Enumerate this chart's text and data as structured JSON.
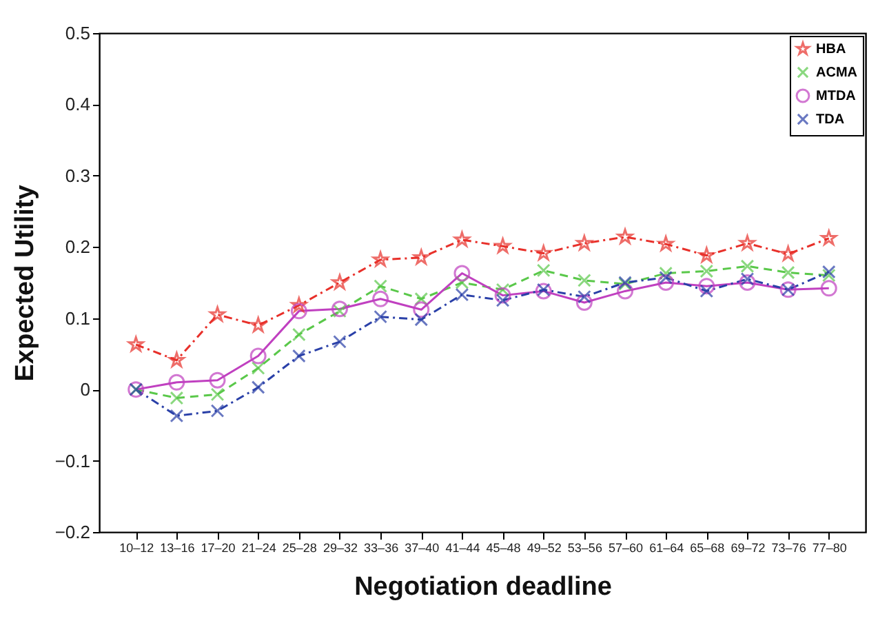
{
  "chart_data": {
    "type": "line",
    "xlabel": "Negotiation deadline",
    "ylabel": "Expected Utility",
    "categories": [
      "10–12",
      "13–16",
      "17–20",
      "21–24",
      "25–28",
      "29–32",
      "33–36",
      "37–40",
      "41–44",
      "45–48",
      "49–52",
      "53–56",
      "57–60",
      "61–64",
      "65–68",
      "69–72",
      "73–76",
      "77–80"
    ],
    "series": [
      {
        "name": "HBA",
        "color": "#e8302a",
        "marker": "star",
        "line_style": "dashdot",
        "values": [
          0.063,
          0.041,
          0.105,
          0.09,
          0.118,
          0.15,
          0.182,
          0.185,
          0.21,
          0.201,
          0.191,
          0.205,
          0.214,
          0.204,
          0.188,
          0.205,
          0.19,
          0.212
        ]
      },
      {
        "name": "ACMA",
        "color": "#5ac84a",
        "marker": "cross",
        "line_style": "dashed",
        "values": [
          0,
          -0.012,
          -0.007,
          0.03,
          0.077,
          0.11,
          0.145,
          0.127,
          0.15,
          0.14,
          0.167,
          0.153,
          0.148,
          0.163,
          0.166,
          0.173,
          0.164,
          0.16
        ]
      },
      {
        "name": "MTDA",
        "color": "#c040c0",
        "marker": "circle",
        "line_style": "solid",
        "values": [
          0,
          0.01,
          0.013,
          0.047,
          0.11,
          0.113,
          0.127,
          0.112,
          0.163,
          0.132,
          0.138,
          0.122,
          0.138,
          0.15,
          0.145,
          0.15,
          0.14,
          0.142
        ]
      },
      {
        "name": "TDA",
        "color": "#2a40a8",
        "marker": "cross",
        "line_style": "dashdot",
        "values": [
          0,
          -0.037,
          -0.03,
          0.003,
          0.047,
          0.067,
          0.102,
          0.098,
          0.133,
          0.125,
          0.14,
          0.13,
          0.15,
          0.157,
          0.138,
          0.155,
          0.14,
          0.165
        ]
      }
    ],
    "ylim": [
      -0.2,
      0.5
    ],
    "yticks": [
      -0.2,
      -0.1,
      0,
      0.1,
      0.2,
      0.3,
      0.4,
      0.5
    ],
    "grid": false,
    "legend": "top right"
  }
}
